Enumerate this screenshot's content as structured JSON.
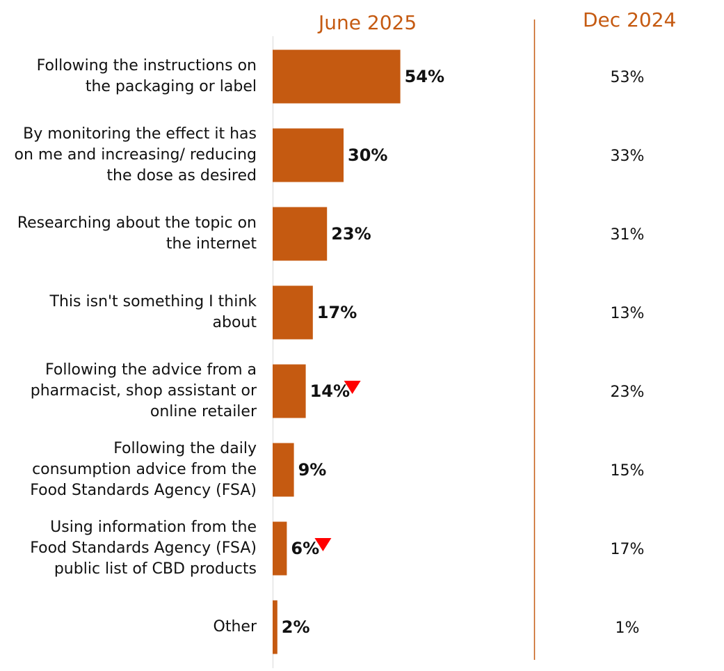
{
  "chart_data": {
    "type": "bar",
    "orientation": "horizontal",
    "series": [
      {
        "name": "June 2025",
        "values": [
          54,
          30,
          23,
          17,
          14,
          9,
          6,
          2
        ],
        "labels": [
          "54%",
          "30%",
          "23%",
          "17%",
          "14%",
          "9%",
          "6%",
          "2%"
        ],
        "significant_decrease": [
          false,
          false,
          false,
          false,
          true,
          false,
          true,
          false
        ]
      },
      {
        "name": "Dec 2024",
        "values": [
          53,
          33,
          31,
          13,
          23,
          15,
          17,
          1
        ],
        "labels": [
          "53%",
          "33%",
          "31%",
          "13%",
          "23%",
          "15%",
          "17%",
          "1%"
        ]
      }
    ],
    "categories": [
      [
        "Following the instructions on",
        "the packaging or label"
      ],
      [
        "By monitoring the effect it has",
        "on me and increasing/ reducing",
        "the dose as desired"
      ],
      [
        "Researching about the topic on",
        "the internet"
      ],
      [
        "This isn't something I think",
        "about"
      ],
      [
        "Following the advice from a",
        "pharmacist, shop assistant or",
        "online retailer"
      ],
      [
        "Following the daily",
        "consumption advice from the",
        "Food Standards Agency (FSA)"
      ],
      [
        "Using information from the",
        "Food Standards Agency (FSA)",
        "public list of CBD products"
      ],
      [
        "Other"
      ]
    ],
    "xlim": [
      0,
      100
    ],
    "colors": {
      "bar": "#c55a11",
      "header": "#c55a11",
      "arrow": "#ff0000",
      "axis": "#d9d9d9",
      "divider": "#c55a11"
    }
  }
}
